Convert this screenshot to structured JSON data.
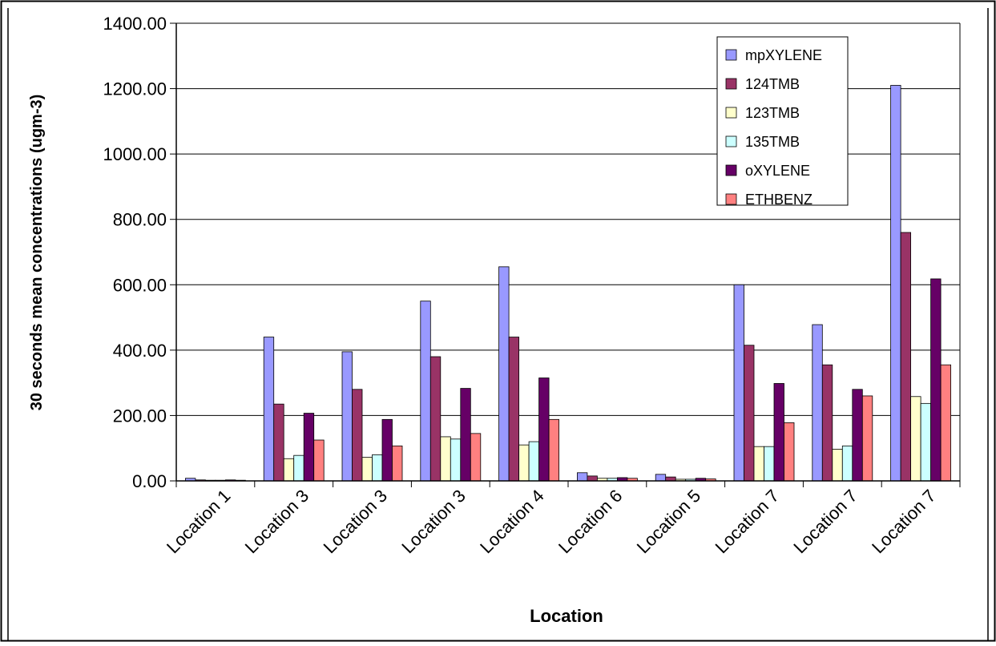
{
  "chart_data": {
    "type": "bar",
    "title": "",
    "xlabel": "Location",
    "ylabel": "30 seconds mean concentrations (ugm-3)",
    "ylim": [
      0,
      1400
    ],
    "yticks": [
      "0.00",
      "200.00",
      "400.00",
      "600.00",
      "800.00",
      "1000.00",
      "1200.00",
      "1400.00"
    ],
    "grid": true,
    "legend_position": "top-right",
    "categories": [
      "Location 1",
      "Location 3",
      "Location 3",
      "Location 3",
      "Location 4",
      "Location 6",
      "Location 5",
      "Location 7",
      "Location 7",
      "Location 7"
    ],
    "series": [
      {
        "name": "mpXYLENE",
        "color": "#9999ff",
        "values": [
          8,
          440,
          395,
          550,
          655,
          25,
          20,
          600,
          478,
          1210
        ]
      },
      {
        "name": "124TMB",
        "color": "#993366",
        "values": [
          3,
          235,
          280,
          380,
          440,
          15,
          12,
          415,
          355,
          760
        ]
      },
      {
        "name": "123TMB",
        "color": "#ffffcc",
        "values": [
          2,
          68,
          72,
          135,
          110,
          8,
          5,
          105,
          97,
          258
        ]
      },
      {
        "name": "135TMB",
        "color": "#ccffff",
        "values": [
          2,
          78,
          80,
          128,
          120,
          8,
          5,
          105,
          107,
          237
        ]
      },
      {
        "name": "oXYLENE",
        "color": "#660066",
        "values": [
          3,
          207,
          188,
          283,
          315,
          10,
          8,
          298,
          280,
          618
        ]
      },
      {
        "name": "ETHBENZ",
        "color": "#ff8080",
        "values": [
          2,
          125,
          107,
          145,
          188,
          8,
          6,
          178,
          260,
          355
        ]
      }
    ]
  }
}
